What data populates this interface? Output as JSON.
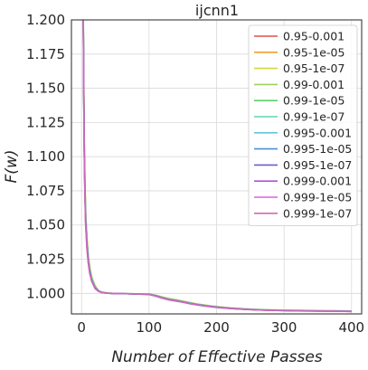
{
  "chart_data": {
    "type": "line",
    "title": "ijcnn1",
    "xlabel": "Number of Effective Passes",
    "ylabel": "F(w)",
    "xlim": [
      -15,
      415
    ],
    "ylim": [
      0.985,
      1.2
    ],
    "xticks": [
      0,
      100,
      200,
      300,
      400
    ],
    "xtick_labels": [
      "0",
      "100",
      "200",
      "300",
      "400"
    ],
    "yticks": [
      1.0,
      1.025,
      1.05,
      1.075,
      1.1,
      1.125,
      1.15,
      1.175,
      1.2
    ],
    "ytick_labels": [
      "1.000",
      "1.025",
      "1.050",
      "1.075",
      "1.100",
      "1.125",
      "1.150",
      "1.175",
      "1.200"
    ],
    "grid": true,
    "legend_position": "top-right",
    "x": [
      2,
      3,
      4,
      5,
      6,
      8,
      10,
      12,
      15,
      20,
      25,
      30,
      40,
      50,
      60,
      80,
      100,
      110,
      120,
      130,
      140,
      150,
      160,
      170,
      180,
      190,
      200,
      220,
      240,
      260,
      280,
      300,
      320,
      340,
      360,
      380,
      400
    ],
    "series": [
      {
        "name": "0.95-0.001",
        "color": "#d9534f",
        "values": [
          1.25,
          1.17,
          1.11,
          1.08,
          1.058,
          1.038,
          1.026,
          1.018,
          1.011,
          1.005,
          1.002,
          1.0008,
          1.0002,
          0.9999,
          0.9998,
          0.9997,
          0.9995,
          0.9985,
          0.9972,
          0.996,
          0.9952,
          0.9942,
          0.9932,
          0.9922,
          0.9915,
          0.9908,
          0.9902,
          0.9893,
          0.9886,
          0.9881,
          0.9878,
          0.9876,
          0.9874,
          0.9873,
          0.9872,
          0.9871,
          0.987
        ]
      },
      {
        "name": "0.95-1e-05",
        "color": "#f0a030",
        "values": [
          1.25,
          1.172,
          1.112,
          1.082,
          1.06,
          1.04,
          1.027,
          1.019,
          1.012,
          1.005,
          1.002,
          1.0009,
          1.0002,
          0.9999,
          0.9998,
          0.9997,
          0.9995,
          0.9986,
          0.9973,
          0.9961,
          0.9953,
          0.9943,
          0.9933,
          0.9923,
          0.9916,
          0.9909,
          0.9903,
          0.9894,
          0.9887,
          0.9882,
          0.9879,
          0.9877,
          0.9875,
          0.9874,
          0.9873,
          0.9872,
          0.9871
        ]
      },
      {
        "name": "0.95-1e-07",
        "color": "#d4d442",
        "values": [
          1.25,
          1.174,
          1.114,
          1.084,
          1.062,
          1.041,
          1.028,
          1.02,
          1.012,
          1.006,
          1.002,
          1.0009,
          1.0002,
          0.9999,
          0.9998,
          0.9997,
          0.9995,
          0.9986,
          0.9974,
          0.9962,
          0.9954,
          0.9944,
          0.9934,
          0.9924,
          0.9917,
          0.991,
          0.9904,
          0.9895,
          0.9888,
          0.9883,
          0.988,
          0.9878,
          0.9876,
          0.9875,
          0.9874,
          0.9873,
          0.9872
        ]
      },
      {
        "name": "0.99-0.001",
        "color": "#9bd35a",
        "values": [
          1.25,
          1.168,
          1.108,
          1.078,
          1.056,
          1.037,
          1.025,
          1.017,
          1.01,
          1.004,
          1.0018,
          1.0007,
          1.0001,
          0.9999,
          0.9998,
          0.9997,
          0.9994,
          0.9983,
          0.9969,
          0.9957,
          0.9949,
          0.9939,
          0.9929,
          0.992,
          0.9913,
          0.9906,
          0.99,
          0.9891,
          0.9885,
          0.988,
          0.9877,
          0.9875,
          0.9873,
          0.9872,
          0.9871,
          0.987,
          0.9869
        ]
      },
      {
        "name": "0.99-1e-05",
        "color": "#5fcf6a",
        "values": [
          1.25,
          1.17,
          1.11,
          1.08,
          1.058,
          1.038,
          1.026,
          1.018,
          1.011,
          1.005,
          1.002,
          1.0008,
          1.0002,
          0.9999,
          0.9998,
          0.9997,
          0.9994,
          0.9984,
          0.997,
          0.9958,
          0.995,
          0.994,
          0.993,
          0.9921,
          0.9914,
          0.9907,
          0.9901,
          0.9892,
          0.9886,
          0.9881,
          0.9878,
          0.9876,
          0.9874,
          0.9873,
          0.9872,
          0.9871,
          0.987
        ]
      },
      {
        "name": "0.99-1e-07",
        "color": "#5fd6b0",
        "values": [
          1.25,
          1.171,
          1.111,
          1.081,
          1.059,
          1.039,
          1.026,
          1.018,
          1.011,
          1.005,
          1.002,
          1.0008,
          1.0002,
          0.9999,
          0.9998,
          0.9997,
          0.9995,
          0.9985,
          0.9971,
          0.9959,
          0.9951,
          0.9941,
          0.9931,
          0.9922,
          0.9915,
          0.9908,
          0.9902,
          0.9893,
          0.9887,
          0.9882,
          0.9879,
          0.9877,
          0.9875,
          0.9874,
          0.9873,
          0.9872,
          0.9871
        ]
      },
      {
        "name": "0.995-0.001",
        "color": "#62c7d8",
        "values": [
          1.25,
          1.165,
          1.105,
          1.075,
          1.054,
          1.035,
          1.024,
          1.016,
          1.01,
          1.004,
          1.0017,
          1.0006,
          1.0001,
          0.9999,
          0.9998,
          0.9996,
          0.9993,
          0.9981,
          0.9966,
          0.9954,
          0.9946,
          0.9937,
          0.9927,
          0.9918,
          0.9911,
          0.9905,
          0.9899,
          0.9891,
          0.9884,
          0.988,
          0.9877,
          0.9875,
          0.9873,
          0.9872,
          0.9871,
          0.987,
          0.9869
        ]
      },
      {
        "name": "0.995-1e-05",
        "color": "#4a90d9",
        "values": [
          1.25,
          1.166,
          1.106,
          1.076,
          1.055,
          1.036,
          1.024,
          1.017,
          1.01,
          1.004,
          1.0018,
          1.0007,
          1.0001,
          0.9999,
          0.9998,
          0.9996,
          0.9993,
          0.9982,
          0.9967,
          0.9955,
          0.9947,
          0.9938,
          0.9928,
          0.9919,
          0.9912,
          0.9905,
          0.99,
          0.9891,
          0.9885,
          0.988,
          0.9877,
          0.9875,
          0.9873,
          0.9872,
          0.9871,
          0.987,
          0.9869
        ]
      },
      {
        "name": "0.995-1e-07",
        "color": "#6a5fcf",
        "values": [
          1.25,
          1.164,
          1.104,
          1.074,
          1.053,
          1.035,
          1.023,
          1.016,
          1.009,
          1.004,
          1.0017,
          1.0006,
          1.0001,
          0.9999,
          0.9998,
          0.9996,
          0.9993,
          0.9981,
          0.9966,
          0.9954,
          0.9946,
          0.9936,
          0.9926,
          0.9918,
          0.9911,
          0.9904,
          0.9899,
          0.989,
          0.9884,
          0.9879,
          0.9876,
          0.9874,
          0.9873,
          0.9872,
          0.9871,
          0.987,
          0.9869
        ]
      },
      {
        "name": "0.999-0.001",
        "color": "#a855d9",
        "values": [
          1.25,
          1.163,
          1.103,
          1.073,
          1.052,
          1.034,
          1.023,
          1.015,
          1.009,
          1.004,
          1.0016,
          1.0006,
          1.0001,
          0.9999,
          0.9998,
          0.9996,
          0.9992,
          0.998,
          0.9965,
          0.9953,
          0.9945,
          0.9936,
          0.9926,
          0.9917,
          0.991,
          0.9904,
          0.9898,
          0.989,
          0.9884,
          0.9879,
          0.9876,
          0.9874,
          0.9872,
          0.9871,
          0.987,
          0.9869,
          0.9868
        ]
      },
      {
        "name": "0.999-1e-05",
        "color": "#d565d5",
        "values": [
          1.25,
          1.162,
          1.102,
          1.072,
          1.051,
          1.033,
          1.022,
          1.015,
          1.009,
          1.0035,
          1.0015,
          1.0005,
          1.0001,
          0.9999,
          0.9998,
          0.9996,
          0.9992,
          0.998,
          0.9964,
          0.9952,
          0.9944,
          0.9935,
          0.9925,
          0.9917,
          0.991,
          0.9903,
          0.9898,
          0.989,
          0.9883,
          0.9879,
          0.9876,
          0.9874,
          0.9872,
          0.9871,
          0.987,
          0.9869,
          0.9868
        ]
      },
      {
        "name": "0.999-1e-07",
        "color": "#cc6bb0",
        "values": [
          1.25,
          1.16,
          1.1,
          1.07,
          1.05,
          1.032,
          1.022,
          1.015,
          1.009,
          1.0035,
          1.0015,
          1.0005,
          1.0001,
          0.9999,
          0.9998,
          0.9996,
          0.9992,
          0.998,
          0.9964,
          0.9952,
          0.9944,
          0.9935,
          0.9925,
          0.9916,
          0.9909,
          0.9903,
          0.9897,
          0.9889,
          0.9883,
          0.9879,
          0.9876,
          0.9874,
          0.9872,
          0.9871,
          0.987,
          0.9869,
          0.9868
        ]
      }
    ]
  }
}
